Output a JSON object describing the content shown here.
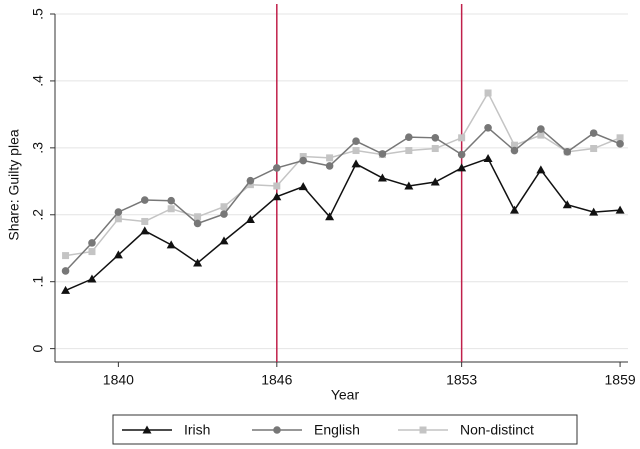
{
  "chart_data": {
    "type": "line",
    "x_label": "Year",
    "y_label": "Share: Guilty plea",
    "x": [
      1838,
      1839,
      1840,
      1841,
      1842,
      1843,
      1844,
      1845,
      1846,
      1847,
      1848,
      1849,
      1850,
      1851,
      1852,
      1853,
      1854,
      1855,
      1856,
      1857,
      1858,
      1859
    ],
    "series": [
      {
        "name": "Irish",
        "color": "#111111",
        "marker": "triangle",
        "values": [
          0.087,
          0.104,
          0.14,
          0.176,
          0.155,
          0.128,
          0.161,
          0.193,
          0.227,
          0.242,
          0.197,
          0.276,
          0.255,
          0.243,
          0.249,
          0.27,
          0.284,
          0.207,
          0.267,
          0.215,
          0.204,
          0.207
        ]
      },
      {
        "name": "English",
        "color": "#777777",
        "marker": "circle",
        "values": [
          0.116,
          0.158,
          0.204,
          0.222,
          0.221,
          0.187,
          0.201,
          0.251,
          0.27,
          0.281,
          0.273,
          0.31,
          0.291,
          0.316,
          0.315,
          0.29,
          0.33,
          0.296,
          0.328,
          0.294,
          0.322,
          0.306
        ]
      },
      {
        "name": "Non-distinct",
        "color": "#c4c4c4",
        "marker": "square",
        "values": [
          0.139,
          0.145,
          0.194,
          0.19,
          0.209,
          0.197,
          0.212,
          0.245,
          0.243,
          0.287,
          0.285,
          0.296,
          0.29,
          0.296,
          0.299,
          0.315,
          0.382,
          0.304,
          0.319,
          0.294,
          0.299,
          0.315
        ]
      }
    ],
    "xlim": [
      1837.6,
      1859.3
    ],
    "ylim": [
      -0.02,
      0.5
    ],
    "xticks": [
      1840,
      1846,
      1853,
      1859
    ],
    "yticks": [
      0,
      {
        "value": 0.1,
        "label": ".1"
      },
      {
        "value": 0.2,
        "label": ".2"
      },
      {
        "value": 0.3,
        "label": ".3"
      },
      {
        "value": 0.4,
        "label": ".4"
      },
      {
        "value": 0.5,
        "label": ".5"
      }
    ],
    "vlines": [
      1846,
      1853
    ],
    "vline_color": "#c0204a",
    "grid": true,
    "legend": "bottom"
  }
}
